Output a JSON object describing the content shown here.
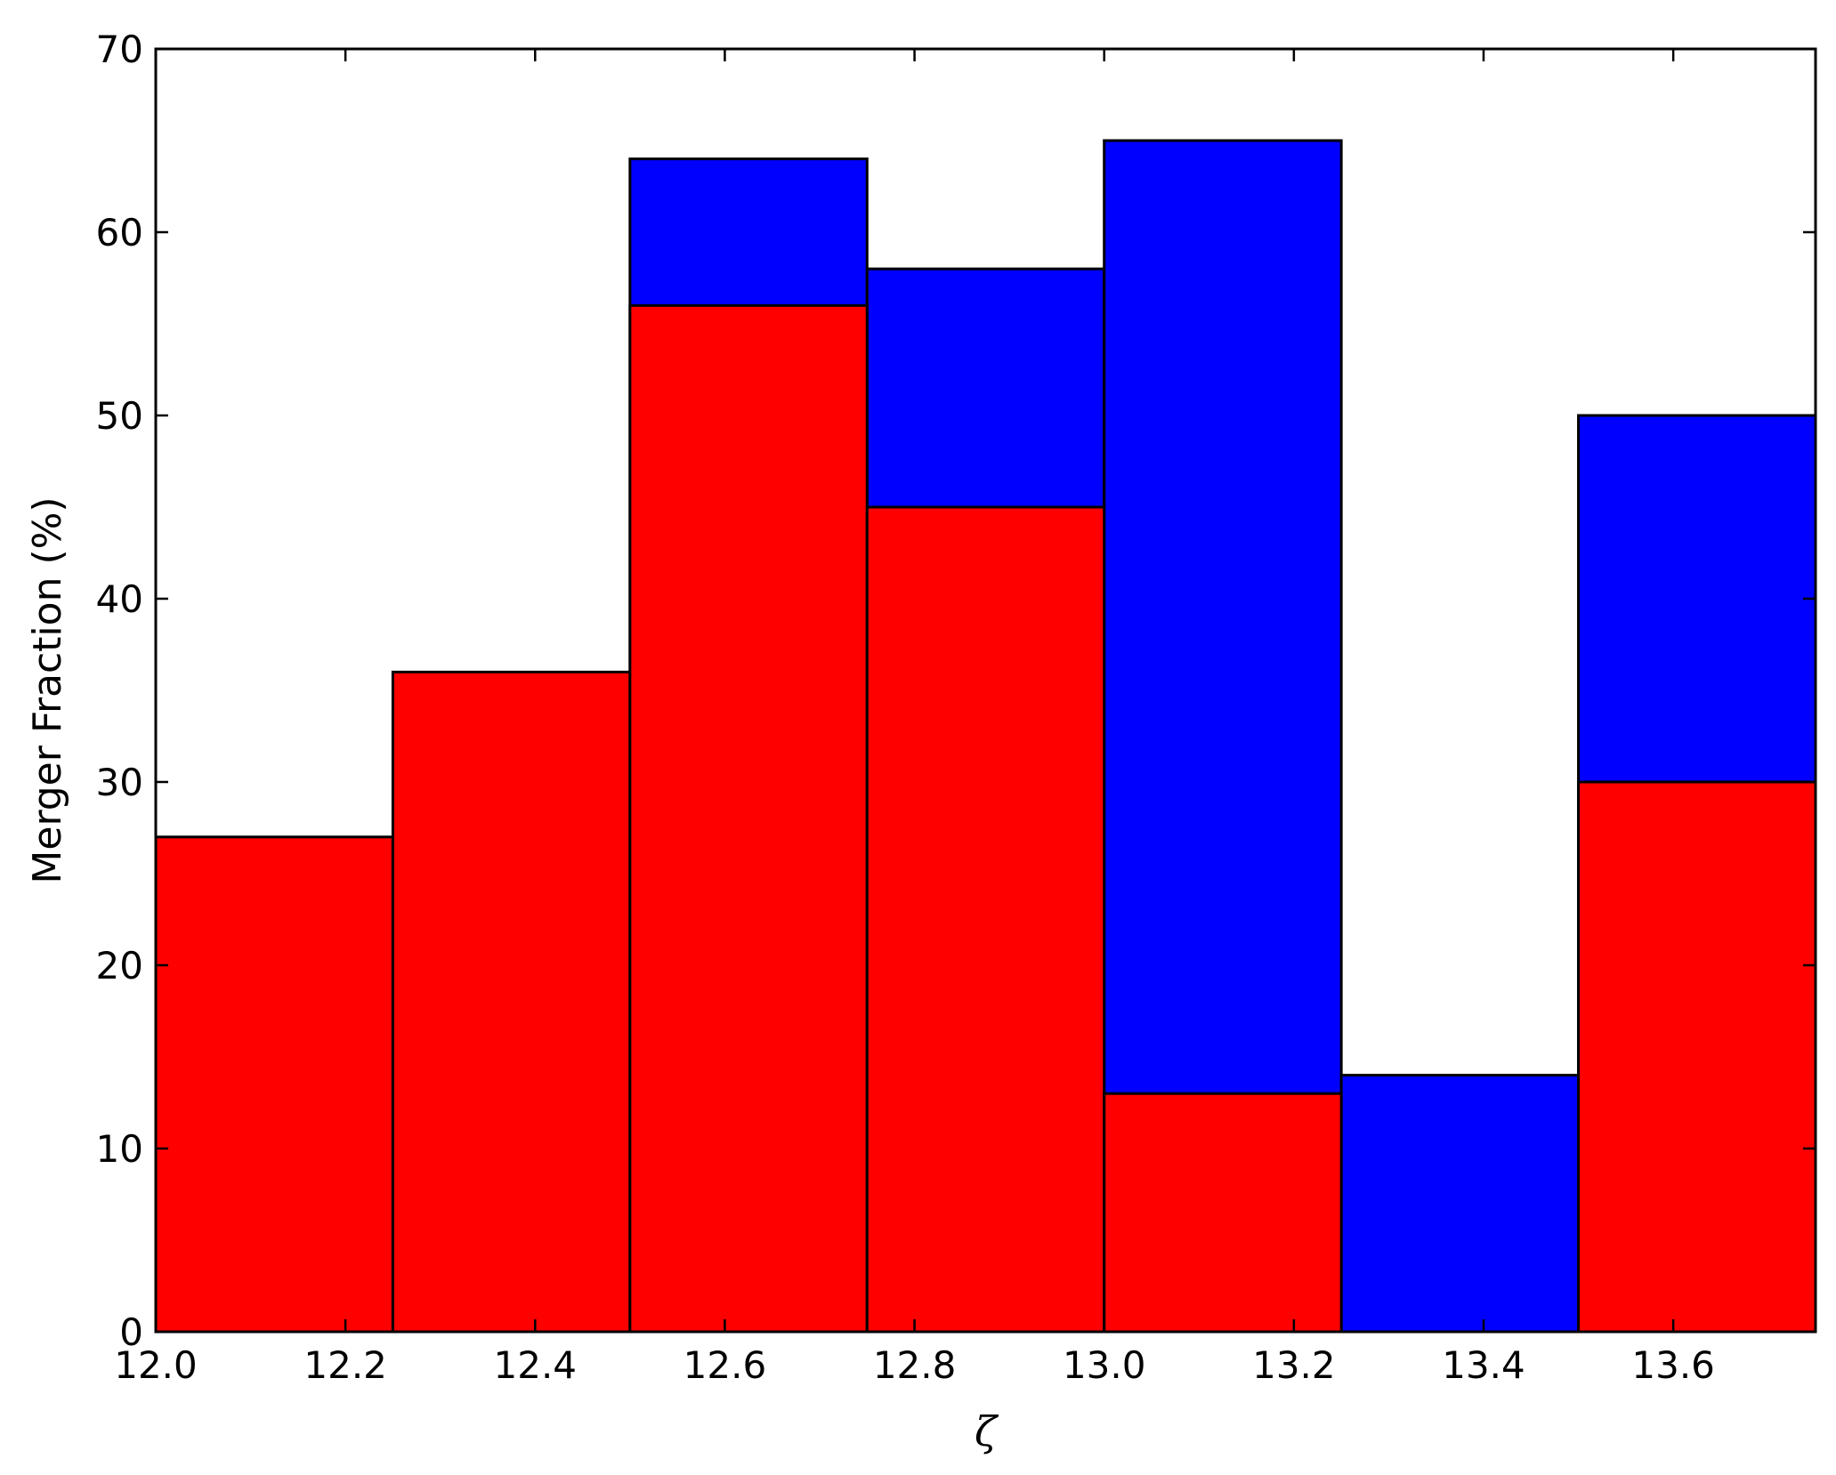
{
  "chart_data": {
    "type": "bar",
    "title": "",
    "xlabel": "ζ",
    "ylabel": "Merger Fraction (%)",
    "xlim": [
      12.0,
      13.75
    ],
    "ylim": [
      0,
      70
    ],
    "x_ticks": [
      "12.0",
      "12.2",
      "12.4",
      "12.6",
      "12.8",
      "13.0",
      "13.2",
      "13.4",
      "13.6"
    ],
    "y_ticks": [
      "0",
      "10",
      "20",
      "30",
      "40",
      "50",
      "60",
      "70"
    ],
    "bin_edges": [
      12.0,
      12.25,
      12.5,
      12.75,
      13.0,
      13.25,
      13.5,
      13.75
    ],
    "grid": false,
    "legend": "none",
    "series": [
      {
        "color": "#0000ff",
        "values": [
          0,
          0,
          64,
          58,
          65,
          14,
          50
        ]
      },
      {
        "color": "#ff0000",
        "values": [
          27,
          36,
          56,
          45,
          13,
          0,
          30
        ]
      }
    ]
  }
}
